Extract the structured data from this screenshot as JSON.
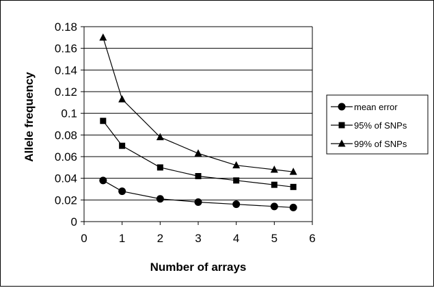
{
  "chart_data": {
    "type": "line",
    "title": "",
    "xlabel": "Number of arrays",
    "ylabel": "Allele frequency",
    "xlim": [
      0,
      6
    ],
    "ylim": [
      0,
      0.18
    ],
    "x_ticks": [
      "0",
      "1",
      "2",
      "3",
      "4",
      "5",
      "6"
    ],
    "y_ticks": [
      "0",
      "0.02",
      "0.04",
      "0.06",
      "0.08",
      "0.1",
      "0.12",
      "0.14",
      "0.16",
      "0.18"
    ],
    "grid": "horizontal",
    "legend_position": "right",
    "series": [
      {
        "name": "mean error",
        "marker": "circle",
        "x": [
          0.5,
          1,
          2,
          3,
          4,
          5,
          5.5
        ],
        "y": [
          0.038,
          0.028,
          0.021,
          0.018,
          0.016,
          0.014,
          0.013
        ]
      },
      {
        "name": "95% of SNPs",
        "marker": "square",
        "x": [
          0.5,
          1,
          2,
          3,
          4,
          5,
          5.5
        ],
        "y": [
          0.093,
          0.07,
          0.05,
          0.042,
          0.038,
          0.034,
          0.032
        ]
      },
      {
        "name": "99% of SNPs",
        "marker": "triangle",
        "x": [
          0.5,
          1,
          2,
          3,
          4,
          5,
          5.5
        ],
        "y": [
          0.17,
          0.113,
          0.078,
          0.063,
          0.052,
          0.048,
          0.046
        ]
      }
    ]
  },
  "colors": {
    "line": "#000000",
    "marker": "#000000",
    "grid": "#000000",
    "background": "#ffffff"
  }
}
